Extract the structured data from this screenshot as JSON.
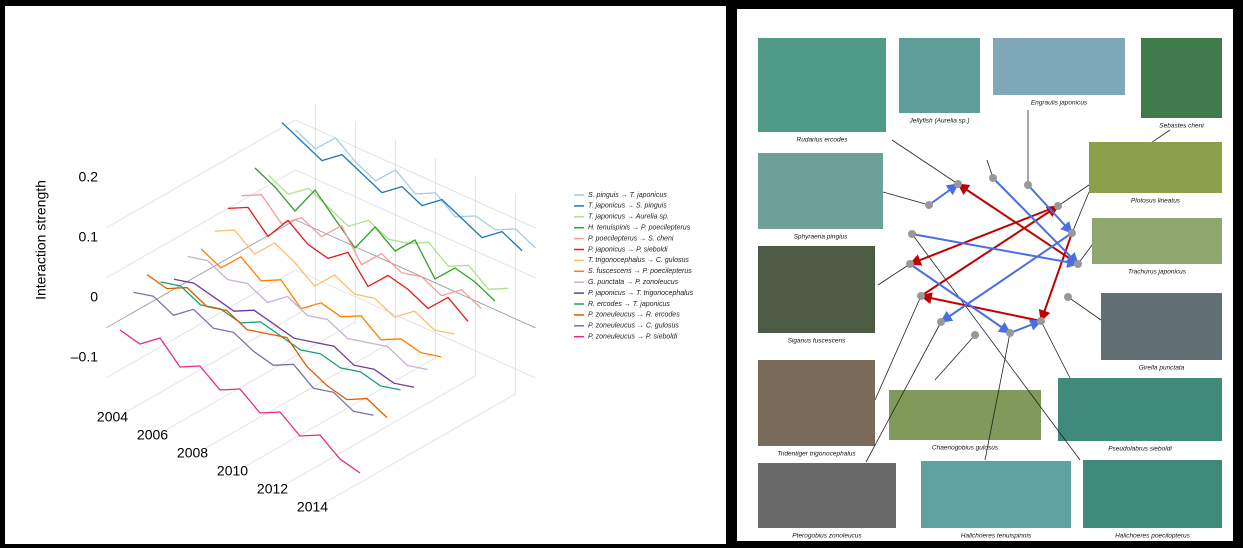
{
  "chart_data": {
    "type": "line3d",
    "y_label": "Interaction strength",
    "x": [
      2003,
      2004,
      2005,
      2006,
      2007,
      2008,
      2009,
      2010,
      2011,
      2012,
      2013,
      2014,
      2015
    ],
    "xlim": [
      2003,
      2015
    ],
    "xticks": [
      2004,
      2006,
      2008,
      2010,
      2012,
      2014
    ],
    "ylim": [
      -0.15,
      0.25
    ],
    "yticks": [
      0.2,
      0.1,
      0,
      {
        "value": -0.1,
        "label": "–0.1"
      }
    ],
    "grid": true,
    "series": [
      {
        "name": "S. pinguis → T. japonicus",
        "color": "#a6cee3",
        "values": [
          0.18,
          0.16,
          0.2,
          0.17,
          0.15,
          0.19,
          0.16,
          0.18,
          0.15,
          0.17,
          0.16,
          0.18,
          0.16
        ]
      },
      {
        "name": "T. japonicus → S. pinguis",
        "color": "#1f78b4",
        "values": [
          0.21,
          0.19,
          0.17,
          0.2,
          0.18,
          0.16,
          0.19,
          0.17,
          0.2,
          0.18,
          0.16,
          0.19,
          0.17
        ]
      },
      {
        "name": "T. japonicus → Aurelia sp.",
        "color": "#b2df8a",
        "values": [
          0.12,
          0.1,
          0.13,
          0.11,
          0.09,
          0.12,
          0.1,
          0.11,
          0.13,
          0.1,
          0.12,
          0.09,
          0.11
        ]
      },
      {
        "name": "H. tenuispinis → P. poecilepterus",
        "color": "#33a02c",
        "values": [
          0.15,
          0.13,
          0.1,
          0.16,
          0.12,
          0.08,
          0.14,
          0.11,
          0.15,
          0.09,
          0.13,
          0.12,
          0.1
        ]
      },
      {
        "name": "P. poecilepterus → S. cheni",
        "color": "#fb9a99",
        "values": [
          0.11,
          0.13,
          0.09,
          0.12,
          0.1,
          0.14,
          0.08,
          0.12,
          0.1,
          0.11,
          0.09,
          0.12,
          0.1
        ]
      },
      {
        "name": "P. japonicus → P. sieboldi",
        "color": "#e31a1c",
        "values": [
          0.1,
          0.12,
          0.08,
          0.13,
          0.1,
          0.09,
          0.12,
          0.07,
          0.11,
          0.1,
          0.08,
          0.12,
          0.09
        ]
      },
      {
        "name": "T. trigonocephalus → C. gulosus",
        "color": "#fdbf6f",
        "values": [
          0.07,
          0.09,
          0.06,
          0.1,
          0.08,
          0.05,
          0.09,
          0.07,
          0.08,
          0.06,
          0.09,
          0.07,
          0.08
        ]
      },
      {
        "name": "S. fuscescens → P. poecilepterus",
        "color": "#ff7f00",
        "values": [
          0.05,
          0.03,
          0.07,
          0.04,
          0.06,
          0.02,
          0.05,
          0.04,
          0.06,
          0.03,
          0.05,
          0.04,
          0.05
        ]
      },
      {
        "name": "G. punctata → P. zonoleucus",
        "color": "#cab2d6",
        "values": [
          0.05,
          0.06,
          0.04,
          0.05,
          0.03,
          0.06,
          0.04,
          0.05,
          0.03,
          0.04,
          0.05,
          0.03,
          0.04
        ]
      },
      {
        "name": "P. japonicus → T. trigonocephalus",
        "color": "#6a3d9a",
        "values": [
          0.02,
          0.03,
          0.02,
          0.01,
          0.03,
          0.02,
          0.01,
          0.02,
          0.03,
          0.01,
          0.02,
          0.01,
          0.02
        ]
      },
      {
        "name": "R. ercodes → T. japonicus",
        "color": "#1b9e77",
        "values": [
          0.03,
          0.04,
          0.02,
          0.03,
          0.02,
          0.04,
          0.03,
          0.02,
          0.03,
          0.02,
          0.03,
          0.02,
          0.03
        ]
      },
      {
        "name": "P. zoneuleucus → R. ercodes",
        "color": "#d95f02",
        "values": [
          0.06,
          0.05,
          0.07,
          0.05,
          0.06,
          0.04,
          0.05,
          0.06,
          0.02,
          0,
          -0.01,
          0.01,
          -0.01
        ]
      },
      {
        "name": "P. zoneuleucus → C. gulosus",
        "color": "#7570b3",
        "values": [
          0.04,
          0.05,
          0.03,
          0.06,
          0.04,
          0.05,
          0.03,
          0.02,
          0.04,
          0.01,
          0.02,
          0,
          0.01
        ]
      },
      {
        "name": "P. zoneuleucus → P. sieboldi",
        "color": "#e7298a",
        "values": [
          -0.02,
          -0.03,
          0,
          -0.04,
          -0.02,
          -0.05,
          -0.03,
          -0.06,
          -0.04,
          -0.07,
          -0.05,
          -0.08,
          -0.09
        ]
      }
    ]
  },
  "network": {
    "species": [
      "Rudarius ercodes",
      "Jellyfish (Aurelia sp.)",
      "Engraulis japonicus",
      "Sebastes cheni",
      "Plotosus lineatus",
      "Sphyraena pingius",
      "Trachurus japonicus",
      "Siganus fuscescens",
      "Girella punctata",
      "Tridentiger trigonocephalus",
      "Chaenogobius gulosus",
      "Pseudolabrus sieboldi",
      "Pterogobius zonoleucus",
      "Halichoeres tenuispinnis",
      "Halichoeres poecilopterus"
    ]
  }
}
